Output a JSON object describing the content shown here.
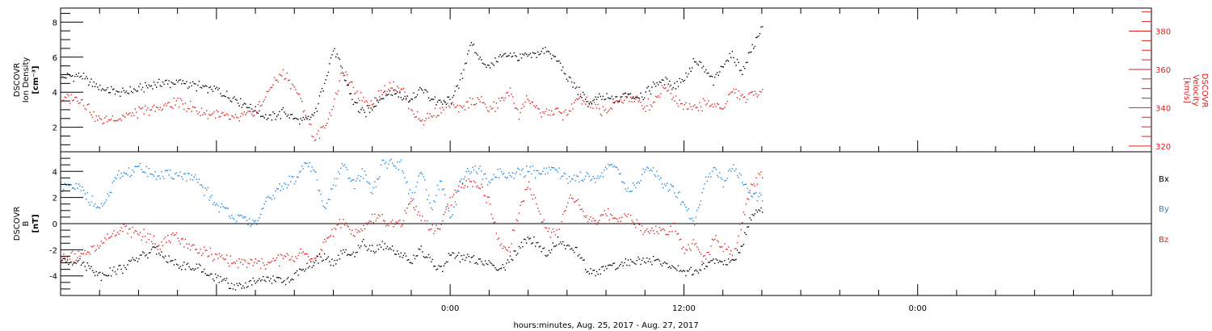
{
  "chart_data": [
    {
      "type": "scatter",
      "panel": "top",
      "ylabel_left": [
        "DSCOVR",
        "Ion Density",
        "[cm⁻³]"
      ],
      "ylabel_right": [
        "DSCOVR",
        "Velocity",
        "[km/s]"
      ],
      "yticks_left": [
        "2",
        "4",
        "6",
        "8"
      ],
      "yticks_right": [
        "320",
        "340",
        "360",
        "380"
      ],
      "ylim_left": [
        0.6,
        8.8
      ],
      "ylim_right": [
        317,
        392
      ],
      "series": [
        {
          "axis": "left",
          "color": "#000000",
          "x": [
            -19,
            -18,
            -17,
            -16,
            -15,
            -14,
            -13,
            -12,
            -11,
            -10,
            -9.5,
            -9,
            -8.5,
            -8,
            -7.5,
            -7,
            -6.5,
            -6,
            -5.5,
            -5,
            -4.5,
            -4,
            -3.5,
            -3,
            -2.5,
            -2,
            -1.5,
            -1,
            -0.5,
            0,
            0.5,
            1,
            1.5,
            2,
            2.5,
            3,
            3.5,
            4,
            4.5,
            5,
            5.5,
            6,
            6.5,
            7,
            7.5,
            8,
            8.5,
            9,
            9.5,
            10,
            10.5,
            11,
            11.5,
            12,
            12.5,
            13,
            13.5,
            14,
            14.5,
            15,
            15.5,
            16
          ],
          "y": [
            4.9,
            4.3,
            4.0,
            4.2,
            4.5,
            4.6,
            4.4,
            4.1,
            3.6,
            3.0,
            2.6,
            2.7,
            2.9,
            2.5,
            2.4,
            2.7,
            4.5,
            6.5,
            5.0,
            3.5,
            2.8,
            3.2,
            3.8,
            4.0,
            3.9,
            3.6,
            4.2,
            3.7,
            3.4,
            3.6,
            4.6,
            6.8,
            5.9,
            5.5,
            6.0,
            6.3,
            6.0,
            6.1,
            6.3,
            6.4,
            5.8,
            4.8,
            4.2,
            3.4,
            3.6,
            3.7,
            3.5,
            4.0,
            3.8,
            3.9,
            4.5,
            4.7,
            4.4,
            4.8,
            5.8,
            5.4,
            4.6,
            5.7,
            6.1,
            5.2,
            6.6,
            7.7
          ]
        },
        {
          "axis": "right",
          "color": "#e0201c",
          "x": [
            -19,
            -18,
            -17,
            -16,
            -15,
            -14,
            -13,
            -12,
            -11,
            -10,
            -9.5,
            -9,
            -8.5,
            -8,
            -7.5,
            -7,
            -6.5,
            -6,
            -5.5,
            -5,
            -4.5,
            -4,
            -3.5,
            -3,
            -2.5,
            -2,
            -1.5,
            -1,
            -0.5,
            0,
            0.5,
            1,
            1.5,
            2,
            2.5,
            3,
            3.5,
            4,
            4.5,
            5,
            5.5,
            6,
            6.5,
            7,
            7.5,
            8,
            8.5,
            9,
            9.5,
            10,
            10.5,
            11,
            11.5,
            12,
            12.5,
            13,
            13.5,
            14,
            14.5,
            15,
            15.5,
            16
          ],
          "y": [
            345,
            333,
            335,
            338,
            340,
            343,
            339,
            336,
            334,
            338,
            346,
            355,
            358,
            350,
            340,
            324,
            330,
            342,
            360,
            350,
            345,
            343,
            349,
            352,
            350,
            340,
            333,
            336,
            339,
            342,
            339,
            343,
            344,
            339,
            343,
            349,
            337,
            346,
            337,
            338,
            338,
            336,
            345,
            343,
            340,
            339,
            343,
            346,
            344,
            341,
            344,
            352,
            345,
            342,
            340,
            342,
            342,
            341,
            349,
            345,
            347,
            350
          ]
        }
      ]
    },
    {
      "type": "scatter",
      "panel": "bottom",
      "ylabel": [
        "DSCOVR",
        "B",
        "[nT]"
      ],
      "yticks": [
        "-4",
        "-2",
        "0",
        "2",
        "4"
      ],
      "ylim": [
        -5.5,
        5.5
      ],
      "legend": [
        {
          "label": "Bx",
          "color": "#000000"
        },
        {
          "label": "By",
          "color": "#1a86e0"
        },
        {
          "label": "Bz",
          "color": "#e0201c"
        }
      ],
      "series": [
        {
          "name": "Bx",
          "color": "#000000",
          "x": [
            -19,
            -18,
            -17,
            -16,
            -15,
            -14,
            -13,
            -12,
            -11,
            -10,
            -9.5,
            -9,
            -8.5,
            -8,
            -7.5,
            -7,
            -6.5,
            -6,
            -5.5,
            -5,
            -4.5,
            -4,
            -3.5,
            -3,
            -2.5,
            -2,
            -1.5,
            -1,
            -0.5,
            0,
            0.5,
            1,
            1.5,
            2,
            2.5,
            3,
            3.5,
            4,
            4.5,
            5,
            5.5,
            6,
            6.5,
            7,
            7.5,
            8,
            8.5,
            9,
            9.5,
            10,
            10.5,
            11,
            11.5,
            12,
            12.5,
            13,
            13.5,
            14,
            14.5,
            15,
            15.5,
            16
          ],
          "y": [
            -2.8,
            -3.9,
            -3.5,
            -2.5,
            -2.0,
            -3.2,
            -3.4,
            -4.2,
            -4.9,
            -4.4,
            -4.2,
            -4.2,
            -4.5,
            -4.0,
            -3.3,
            -3.0,
            -2.4,
            -3.0,
            -2.2,
            -2.5,
            -1.5,
            -2.0,
            -1.6,
            -1.8,
            -2.4,
            -2.8,
            -2.0,
            -3.0,
            -3.5,
            -2.4,
            -2.5,
            -2.7,
            -2.9,
            -3.1,
            -3.6,
            -2.8,
            -2.0,
            -1.0,
            -1.5,
            -2.4,
            -1.2,
            -1.8,
            -2.0,
            -3.4,
            -3.9,
            -3.2,
            -3.2,
            -3.0,
            -2.7,
            -3.0,
            -2.7,
            -3.1,
            -3.3,
            -3.8,
            -3.5,
            -3.2,
            -2.7,
            -2.9,
            -3.0,
            -1.5,
            0.9,
            1.2
          ]
        },
        {
          "name": "By",
          "color": "#1a86e0",
          "x": [
            -19,
            -18,
            -17,
            -16,
            -15,
            -14,
            -13,
            -12,
            -11,
            -10,
            -9.5,
            -9,
            -8.5,
            -8,
            -7.5,
            -7,
            -6.5,
            -6,
            -5.5,
            -5,
            -4.5,
            -4,
            -3.5,
            -3,
            -2.5,
            -2,
            -1.5,
            -1,
            -0.5,
            0,
            0.5,
            1,
            1.5,
            2,
            2.5,
            3,
            3.5,
            4,
            4.5,
            5,
            5.5,
            6,
            6.5,
            7,
            7.5,
            8,
            8.5,
            9,
            9.5,
            10,
            10.5,
            11,
            11.5,
            12,
            12.5,
            13,
            13.5,
            14,
            14.5,
            15,
            15.5,
            16
          ],
          "y": [
            2.8,
            1.0,
            3.8,
            4.3,
            3.7,
            3.8,
            3.3,
            1.5,
            0.5,
            0.0,
            1.5,
            2.5,
            3.0,
            3.5,
            4.6,
            4.2,
            1.0,
            3.0,
            4.4,
            3.0,
            4.0,
            2.5,
            4.5,
            4.7,
            4.4,
            2.0,
            4.0,
            1.0,
            3.5,
            0.0,
            3.0,
            4.2,
            4.2,
            3.0,
            4.0,
            3.8,
            4.0,
            4.0,
            4.0,
            4.2,
            4.0,
            3.6,
            3.5,
            3.8,
            3.5,
            4.3,
            4.4,
            2.5,
            3.0,
            4.2,
            4.1,
            3.0,
            2.5,
            1.5,
            0.0,
            3.0,
            4.4,
            3.0,
            4.3,
            3.2,
            2.2,
            2.0
          ]
        },
        {
          "name": "Bz",
          "color": "#e0201c",
          "x": [
            -19,
            -18,
            -17,
            -16,
            -15,
            -14,
            -13,
            -12,
            -11,
            -10,
            -9.5,
            -9,
            -8.5,
            -8,
            -7.5,
            -7,
            -6.5,
            -6,
            -5.5,
            -5,
            -4.5,
            -4,
            -3.5,
            -3,
            -2.5,
            -2,
            -1.5,
            -1,
            -0.5,
            0,
            0.5,
            1,
            1.5,
            2,
            2.5,
            3,
            3.5,
            4,
            4.5,
            5,
            5.5,
            6,
            6.5,
            7,
            7.5,
            8,
            8.5,
            9,
            9.5,
            10,
            10.5,
            11,
            11.5,
            12,
            12.5,
            13,
            13.5,
            14,
            14.5,
            15,
            15.5,
            16
          ],
          "y": [
            -2.5,
            -1.5,
            -0.3,
            -0.7,
            -1.5,
            -1.0,
            -2.0,
            -2.5,
            -3.0,
            -3.0,
            -3.0,
            -2.8,
            -2.6,
            -2.5,
            -2.2,
            -2.8,
            -1.5,
            -0.5,
            0.2,
            -0.8,
            -0.3,
            0.5,
            0.3,
            -0.2,
            0.3,
            1.8,
            0.5,
            -0.5,
            0.0,
            1.8,
            3.0,
            3.3,
            2.8,
            1.5,
            -1.5,
            -2.0,
            1.0,
            3.2,
            1.0,
            -0.5,
            -0.8,
            2.0,
            1.5,
            0.5,
            0.3,
            0.8,
            0.5,
            0.5,
            0.0,
            -0.5,
            -0.5,
            -0.5,
            0.0,
            -2.0,
            -1.5,
            -2.8,
            -1.2,
            -1.8,
            -2.5,
            0.5,
            3.0,
            3.8
          ]
        }
      ]
    }
  ],
  "x_axis": {
    "label": "hours:minutes, Aug. 25, 2017 - Aug. 27, 2017",
    "xlim": [
      -20,
      36
    ],
    "ticks": [
      {
        "x": 0,
        "label": "0:00"
      },
      {
        "x": 12,
        "label": "12:00"
      },
      {
        "x": 24,
        "label": "0:00"
      }
    ]
  },
  "colors": {
    "black": "#000000",
    "red": "#e0201c",
    "blue": "#1a86e0"
  }
}
